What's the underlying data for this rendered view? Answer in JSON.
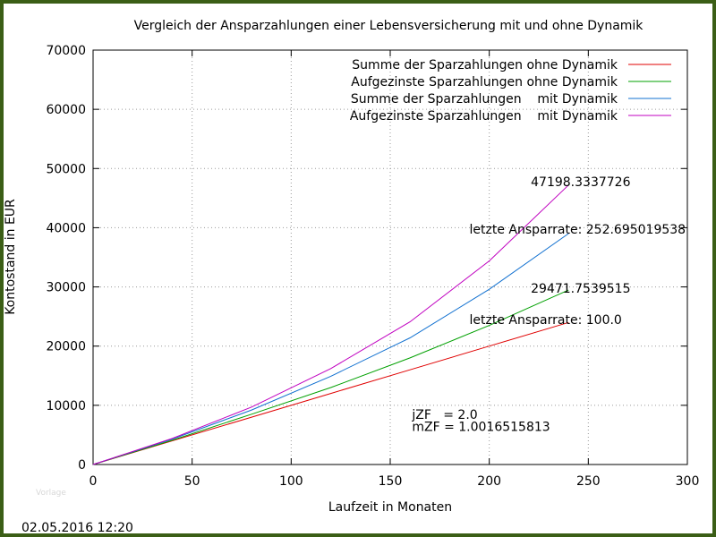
{
  "chart_data": {
    "type": "line",
    "title": "Vergleich der Ansparzahlungen einer Lebensversicherung mit und ohne Dynamik",
    "xlabel": "Laufzeit in Monaten",
    "ylabel": "Kontostand in EUR",
    "xlim": [
      0,
      300
    ],
    "ylim": [
      0,
      70000
    ],
    "x_ticks": [
      "0",
      "50",
      "100",
      "150",
      "200",
      "250",
      "300"
    ],
    "y_ticks": [
      "0",
      "10000",
      "20000",
      "30000",
      "40000",
      "50000",
      "60000",
      "70000"
    ],
    "grid": true,
    "legend_position": "top-right",
    "series": [
      {
        "name": "Summe der Sparzahlungen ohne Dynamik",
        "color": "#e00000",
        "x": [
          0,
          40,
          80,
          120,
          160,
          200,
          240
        ],
        "y": [
          0,
          4000,
          8000,
          12000,
          16000,
          20000,
          24000
        ]
      },
      {
        "name": "Aufgezinste Sparzahlungen ohne Dynamik",
        "color": "#00a000",
        "x": [
          0,
          40,
          80,
          120,
          160,
          200,
          240
        ],
        "y": [
          0,
          4100,
          8500,
          13000,
          18000,
          23500,
          29472
        ]
      },
      {
        "name": "Summe der Sparzahlungen    mit Dynamik",
        "color": "#1070d0",
        "x": [
          0,
          40,
          80,
          120,
          160,
          200,
          240
        ],
        "y": [
          0,
          4300,
          9200,
          14900,
          21400,
          29600,
          39000
        ]
      },
      {
        "name": "Aufgezinste Sparzahlungen    mit Dynamik",
        "color": "#c000c0",
        "x": [
          0,
          40,
          80,
          120,
          160,
          200,
          240
        ],
        "y": [
          0,
          4400,
          9700,
          16200,
          24100,
          34400,
          47198
        ]
      }
    ],
    "annotations": [
      {
        "text": "47198.3337726",
        "x": 221,
        "y": 47000
      },
      {
        "text": "letzte Ansparrate: 252.695019538",
        "x": 190,
        "y": 39000
      },
      {
        "text": "29471.7539515",
        "x": 221,
        "y": 29000
      },
      {
        "text": "letzte Ansparrate: 100.0",
        "x": 190,
        "y": 23700
      },
      {
        "text": "jZF   = 2.0",
        "x": 161,
        "y": 7700
      },
      {
        "text": "mZF = 1.0016515813",
        "x": 161,
        "y": 5700
      }
    ]
  },
  "footer": {
    "timestamp": "02.05.2016 12:20",
    "watermark": "Vorlage"
  }
}
